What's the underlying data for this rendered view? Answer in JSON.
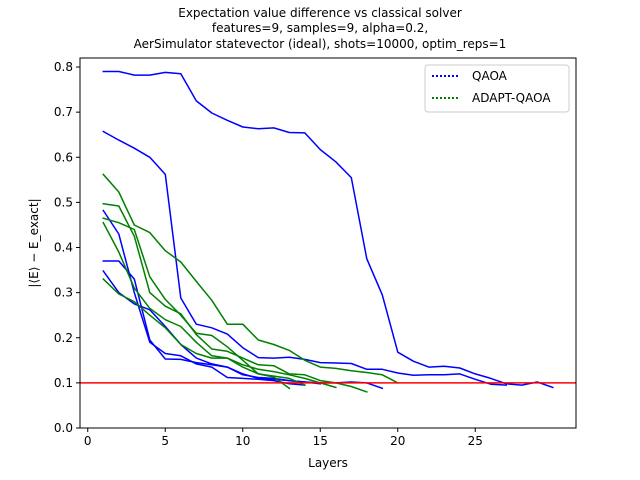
{
  "chart_data": {
    "type": "line",
    "title_lines": [
      "Expectation value difference vs classical solver",
      "features=9, samples=9, alpha=0.2,",
      "AerSimulator statevector (ideal), shots=10000, optim_reps=1"
    ],
    "xlabel": "Layers",
    "ylabel": "|⟨E⟩ − E_exact|",
    "xlim": [
      -0.5,
      31.5
    ],
    "ylim": [
      0.0,
      0.82
    ],
    "xticks": [
      0,
      5,
      10,
      15,
      20,
      25
    ],
    "yticks": [
      0.0,
      0.1,
      0.2,
      0.3,
      0.4,
      0.5,
      0.6,
      0.7,
      0.8
    ],
    "reference_line": {
      "y": 0.1,
      "color": "#ff0000"
    },
    "legend": {
      "placement": "top-right",
      "entries": [
        {
          "label": "QAOA",
          "color": "#0000ff"
        },
        {
          "label": "ADAPT-QAOA",
          "color": "#008000"
        }
      ]
    },
    "series": [
      {
        "name": "QAOA run 1",
        "method": "QAOA",
        "color": "#0000ff",
        "x": [
          1,
          2,
          3,
          4,
          5,
          6,
          7,
          8,
          9,
          10,
          11,
          12,
          13,
          14,
          15,
          16,
          17,
          18,
          19,
          20,
          21,
          22,
          23,
          24,
          25,
          26,
          27,
          28,
          29,
          30
        ],
        "y": [
          0.79,
          0.79,
          0.782,
          0.782,
          0.788,
          0.785,
          0.725,
          0.698,
          0.682,
          0.667,
          0.663,
          0.665,
          0.655,
          0.654,
          0.617,
          0.59,
          0.555,
          0.375,
          0.295,
          0.168,
          0.148,
          0.135,
          0.137,
          0.133,
          0.12,
          0.11,
          0.098,
          0.095,
          0.102,
          0.09
        ]
      },
      {
        "name": "QAOA run 2",
        "method": "QAOA",
        "color": "#0000ff",
        "x": [
          1,
          2,
          3,
          4,
          5,
          6,
          7,
          8,
          9,
          10,
          11,
          12,
          13,
          14,
          15,
          16,
          17,
          18,
          19,
          20,
          21,
          22,
          23,
          24,
          25,
          26,
          27
        ],
        "y": [
          0.657,
          0.638,
          0.62,
          0.6,
          0.562,
          0.288,
          0.23,
          0.222,
          0.208,
          0.178,
          0.156,
          0.155,
          0.157,
          0.152,
          0.145,
          0.144,
          0.143,
          0.13,
          0.13,
          0.122,
          0.117,
          0.118,
          0.118,
          0.12,
          0.108,
          0.097,
          0.095
        ]
      },
      {
        "name": "QAOA run 3",
        "method": "QAOA",
        "color": "#0000ff",
        "x": [
          1,
          2,
          3,
          4,
          5,
          6,
          7,
          8,
          9,
          10,
          11,
          12,
          13,
          14
        ],
        "y": [
          0.482,
          0.43,
          0.3,
          0.19,
          0.165,
          0.16,
          0.142,
          0.135,
          0.112,
          0.11,
          0.108,
          0.105,
          0.098,
          0.095
        ]
      },
      {
        "name": "QAOA run 4",
        "method": "QAOA",
        "color": "#0000ff",
        "x": [
          1,
          2,
          3,
          4,
          5,
          6,
          7,
          8,
          9,
          10,
          11,
          12,
          13,
          14,
          15
        ],
        "y": [
          0.37,
          0.37,
          0.33,
          0.195,
          0.153,
          0.152,
          0.145,
          0.14,
          0.135,
          0.118,
          0.112,
          0.11,
          0.105,
          0.102,
          0.098
        ]
      },
      {
        "name": "QAOA run 5",
        "method": "QAOA",
        "color": "#0000ff",
        "x": [
          1,
          2,
          3,
          4,
          5,
          6,
          7,
          8,
          9,
          10,
          11,
          12,
          13,
          14,
          15,
          16,
          17,
          18,
          19
        ],
        "y": [
          0.348,
          0.3,
          0.275,
          0.262,
          0.225,
          0.185,
          0.155,
          0.142,
          0.135,
          0.12,
          0.11,
          0.108,
          0.105,
          0.102,
          0.1,
          0.1,
          0.102,
          0.1,
          0.088
        ]
      },
      {
        "name": "ADAPT-QAOA run 1",
        "method": "ADAPT-QAOA",
        "color": "#008000",
        "x": [
          1,
          2,
          3,
          4,
          5,
          6,
          7,
          8,
          9,
          10,
          11,
          12,
          13,
          14,
          15,
          16,
          17,
          18,
          19,
          20
        ],
        "y": [
          0.562,
          0.523,
          0.45,
          0.433,
          0.393,
          0.368,
          0.325,
          0.283,
          0.23,
          0.23,
          0.195,
          0.185,
          0.172,
          0.15,
          0.135,
          0.132,
          0.127,
          0.123,
          0.118,
          0.1
        ]
      },
      {
        "name": "ADAPT-QAOA run 2",
        "method": "ADAPT-QAOA",
        "color": "#008000",
        "x": [
          1,
          2,
          3,
          4,
          5,
          6,
          7,
          8,
          9,
          10,
          11,
          12,
          13,
          14,
          15,
          16,
          17,
          18
        ],
        "y": [
          0.497,
          0.492,
          0.425,
          0.3,
          0.27,
          0.253,
          0.207,
          0.175,
          0.17,
          0.155,
          0.14,
          0.138,
          0.12,
          0.118,
          0.105,
          0.1,
          0.092,
          0.08
        ]
      },
      {
        "name": "ADAPT-QAOA run 3",
        "method": "ADAPT-QAOA",
        "color": "#008000",
        "x": [
          1,
          2,
          3,
          4,
          5,
          6,
          7,
          8,
          9,
          10,
          11,
          12,
          13
        ],
        "y": [
          0.465,
          0.455,
          0.44,
          0.335,
          0.285,
          0.25,
          0.21,
          0.205,
          0.18,
          0.15,
          0.12,
          0.113,
          0.088
        ]
      },
      {
        "name": "ADAPT-QAOA run 4",
        "method": "ADAPT-QAOA",
        "color": "#008000",
        "x": [
          1,
          2,
          3,
          4,
          5,
          6,
          7,
          8,
          9,
          10,
          11,
          12,
          13,
          14,
          15,
          16
        ],
        "y": [
          0.455,
          0.39,
          0.31,
          0.265,
          0.24,
          0.225,
          0.19,
          0.16,
          0.155,
          0.14,
          0.13,
          0.125,
          0.118,
          0.11,
          0.1,
          0.09
        ]
      },
      {
        "name": "ADAPT-QAOA run 5",
        "method": "ADAPT-QAOA",
        "color": "#008000",
        "x": [
          1,
          2,
          3,
          4,
          5,
          6,
          7,
          8,
          9,
          10,
          11,
          12,
          13,
          14
        ],
        "y": [
          0.33,
          0.297,
          0.28,
          0.25,
          0.222,
          0.185,
          0.165,
          0.155,
          0.155,
          0.135,
          0.12,
          0.115,
          0.11,
          0.095
        ]
      }
    ]
  }
}
